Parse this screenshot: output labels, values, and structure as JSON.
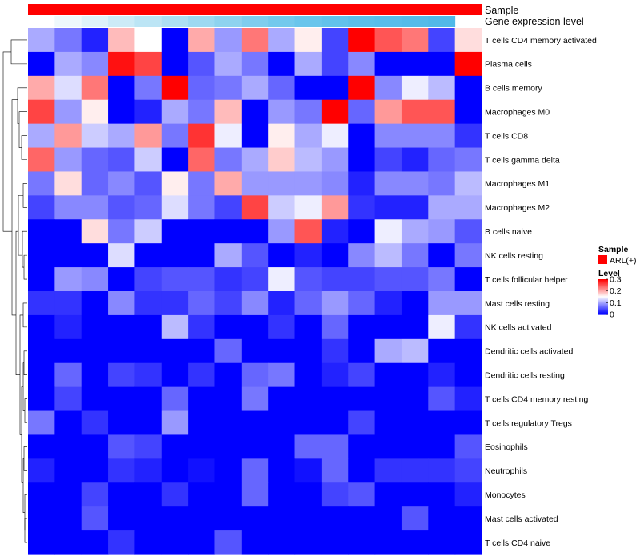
{
  "chart_data": {
    "type": "heatmap",
    "annotations": {
      "sample_label": "Sample",
      "expression_label": "Gene expression level",
      "sample_color": "#ff0000",
      "expression_colors": [
        "#ffffff",
        "#eef8fc",
        "#def2fa",
        "#ccebf7",
        "#bce5f5",
        "#acdff3",
        "#9dd9f1",
        "#8ed3ef",
        "#7fcdee",
        "#73c9ed",
        "#69c5ec",
        "#62c2eb",
        "#5cbfea",
        "#58bdea",
        "#55bbe9",
        "#51b9e8"
      ]
    },
    "rows": [
      "T cells CD4 memory activated",
      "Plasma cells",
      "B cells memory",
      "Macrophages M0",
      "T cells CD8",
      "T cells gamma delta",
      "Macrophages M1",
      "Macrophages M2",
      "B cells naive",
      "NK cells resting",
      "T cells follicular helper",
      "Mast cells resting",
      "NK cells activated",
      "Dendritic cells activated",
      "Dendritic cells resting",
      "T cells CD4 memory resting",
      "T cells regulatory  Tregs",
      "Eosinophils",
      "Neutrophils",
      "Monocytes",
      "Mast cells activated",
      "T cells CD4 naive"
    ],
    "values": [
      [
        0.1,
        0.07,
        0.02,
        0.19,
        0.15,
        0.0,
        0.2,
        0.09,
        0.23,
        0.1,
        0.16,
        0.04,
        0.3,
        0.25,
        0.23,
        0.04,
        0.17
      ],
      [
        0.0,
        0.1,
        0.08,
        0.29,
        0.26,
        0.0,
        0.05,
        0.1,
        0.07,
        0.0,
        0.1,
        0.04,
        0.08,
        0.0,
        0.0,
        0.0,
        0.3
      ],
      [
        0.2,
        0.13,
        0.23,
        0.0,
        0.07,
        0.3,
        0.06,
        0.07,
        0.1,
        0.06,
        0.0,
        0.0,
        0.3,
        0.08,
        0.14,
        0.11,
        0.0
      ],
      [
        0.26,
        0.09,
        0.16,
        0.0,
        0.02,
        0.1,
        0.07,
        0.19,
        0.0,
        0.09,
        0.07,
        0.3,
        0.06,
        0.21,
        0.25,
        0.25,
        0.0
      ],
      [
        0.1,
        0.21,
        0.12,
        0.1,
        0.21,
        0.07,
        0.27,
        0.14,
        0.0,
        0.16,
        0.1,
        0.14,
        0.0,
        0.08,
        0.08,
        0.08,
        0.03
      ],
      [
        0.24,
        0.09,
        0.06,
        0.05,
        0.12,
        0.0,
        0.24,
        0.07,
        0.1,
        0.18,
        0.11,
        0.09,
        0.0,
        0.04,
        0.02,
        0.06,
        0.07
      ],
      [
        0.07,
        0.17,
        0.06,
        0.08,
        0.05,
        0.16,
        0.07,
        0.2,
        0.09,
        0.09,
        0.09,
        0.08,
        0.02,
        0.08,
        0.08,
        0.07,
        0.11
      ],
      [
        0.04,
        0.08,
        0.08,
        0.05,
        0.06,
        0.13,
        0.07,
        0.04,
        0.26,
        0.12,
        0.14,
        0.21,
        0.03,
        0.02,
        0.02,
        0.1,
        0.1
      ],
      [
        0.0,
        0.0,
        0.17,
        0.07,
        0.12,
        0.0,
        0.0,
        0.0,
        0.0,
        0.09,
        0.25,
        0.02,
        0.0,
        0.14,
        0.1,
        0.09,
        0.05
      ],
      [
        0.0,
        0.0,
        0.0,
        0.13,
        0.0,
        0.0,
        0.0,
        0.1,
        0.05,
        0.0,
        0.02,
        0.0,
        0.08,
        0.11,
        0.07,
        0.0,
        0.07
      ],
      [
        0.0,
        0.09,
        0.08,
        0.0,
        0.04,
        0.05,
        0.05,
        0.03,
        0.04,
        0.14,
        0.05,
        0.04,
        0.04,
        0.05,
        0.05,
        0.07,
        0.0
      ],
      [
        0.03,
        0.03,
        0.0,
        0.08,
        0.03,
        0.03,
        0.06,
        0.04,
        0.08,
        0.02,
        0.06,
        0.09,
        0.06,
        0.02,
        0.0,
        0.09,
        0.09
      ],
      [
        0.0,
        0.02,
        0.0,
        0.0,
        0.0,
        0.11,
        0.03,
        0.0,
        0.0,
        0.03,
        0.0,
        0.06,
        0.0,
        0.0,
        0.0,
        0.14,
        0.03
      ],
      [
        0.0,
        0.0,
        0.0,
        0.0,
        0.0,
        0.0,
        0.0,
        0.06,
        0.0,
        0.0,
        0.0,
        0.03,
        0.0,
        0.1,
        0.11,
        0.0,
        0.0
      ],
      [
        0.0,
        0.06,
        0.0,
        0.04,
        0.03,
        0.0,
        0.03,
        0.0,
        0.06,
        0.07,
        0.0,
        0.02,
        0.04,
        0.0,
        0.0,
        0.02,
        0.0
      ],
      [
        0.0,
        0.04,
        0.0,
        0.0,
        0.0,
        0.06,
        0.0,
        0.0,
        0.07,
        0.0,
        0.0,
        0.0,
        0.0,
        0.0,
        0.0,
        0.05,
        0.02
      ],
      [
        0.07,
        0.0,
        0.03,
        0.0,
        0.0,
        0.09,
        0.0,
        0.0,
        0.0,
        0.0,
        0.0,
        0.0,
        0.04,
        0.0,
        0.0,
        0.0,
        0.0
      ],
      [
        0.0,
        0.0,
        0.0,
        0.05,
        0.04,
        0.0,
        0.0,
        0.0,
        0.0,
        0.0,
        0.06,
        0.06,
        0.0,
        0.0,
        0.0,
        0.0,
        0.05
      ],
      [
        0.02,
        0.0,
        0.0,
        0.03,
        0.02,
        0.0,
        0.01,
        0.0,
        0.06,
        0.0,
        0.01,
        0.06,
        0.0,
        0.03,
        0.03,
        0.03,
        0.04
      ],
      [
        0.0,
        0.0,
        0.04,
        0.0,
        0.0,
        0.03,
        0.0,
        0.0,
        0.06,
        0.0,
        0.0,
        0.04,
        0.05,
        0.0,
        0.0,
        0.0,
        0.02
      ],
      [
        0.0,
        0.0,
        0.05,
        0.0,
        0.0,
        0.0,
        0.0,
        0.0,
        0.0,
        0.0,
        0.0,
        0.0,
        0.0,
        0.0,
        0.05,
        0.0,
        0.0
      ],
      [
        0.0,
        0.0,
        0.0,
        0.03,
        0.0,
        0.0,
        0.0,
        0.05,
        0.0,
        0.0,
        0.0,
        0.0,
        0.0,
        0.0,
        0.0,
        0.0,
        0.0
      ]
    ],
    "color_scale": {
      "min": 0,
      "mid": 0.15,
      "max": 0.3,
      "low": "#0000ff",
      "midColor": "#ffffff",
      "high": "#ff0000"
    },
    "legend": {
      "sample_title": "Sample",
      "sample_entry": "ARL(+)",
      "level_title": "Level",
      "ticks": [
        "0.3",
        "0.2",
        "0.1",
        "0"
      ]
    }
  }
}
